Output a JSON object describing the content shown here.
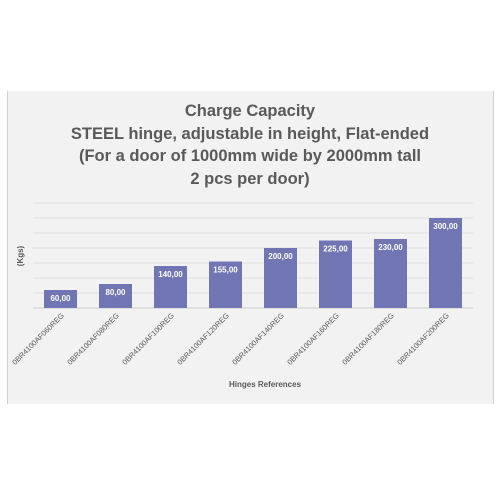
{
  "chart_data": {
    "type": "bar",
    "title_lines": [
      "Charge Capacity",
      "STEEL hinge, adjustable in height, Flat-ended",
      "(For a door of 1000mm wide by 2000mm tall",
      "2 pcs per door)"
    ],
    "xlabel": "Hinges References",
    "ylabel": "(Kgs)",
    "categories": [
      "0BR4100AF060REG",
      "0BR4100AF080REG",
      "0BR4100AF100REG",
      "0BR4100AF120REG",
      "0BR4100AF140REG",
      "0BR4100AF160REG",
      "0BR4100AF180REG",
      "0BR4100AF200REG"
    ],
    "values": [
      60,
      80,
      140,
      155,
      200,
      225,
      230,
      300
    ],
    "value_labels": [
      "60,00",
      "80,00",
      "140,00",
      "155,00",
      "200,00",
      "225,00",
      "230,00",
      "300,00"
    ],
    "ylim": [
      0,
      350
    ],
    "grid": true,
    "legend": "none",
    "colors": {
      "bar": "#7076b4",
      "bar_label": "#ffffff",
      "text": "#595959",
      "grid": "#d9d9d9",
      "background": "#f2f2f2"
    }
  }
}
